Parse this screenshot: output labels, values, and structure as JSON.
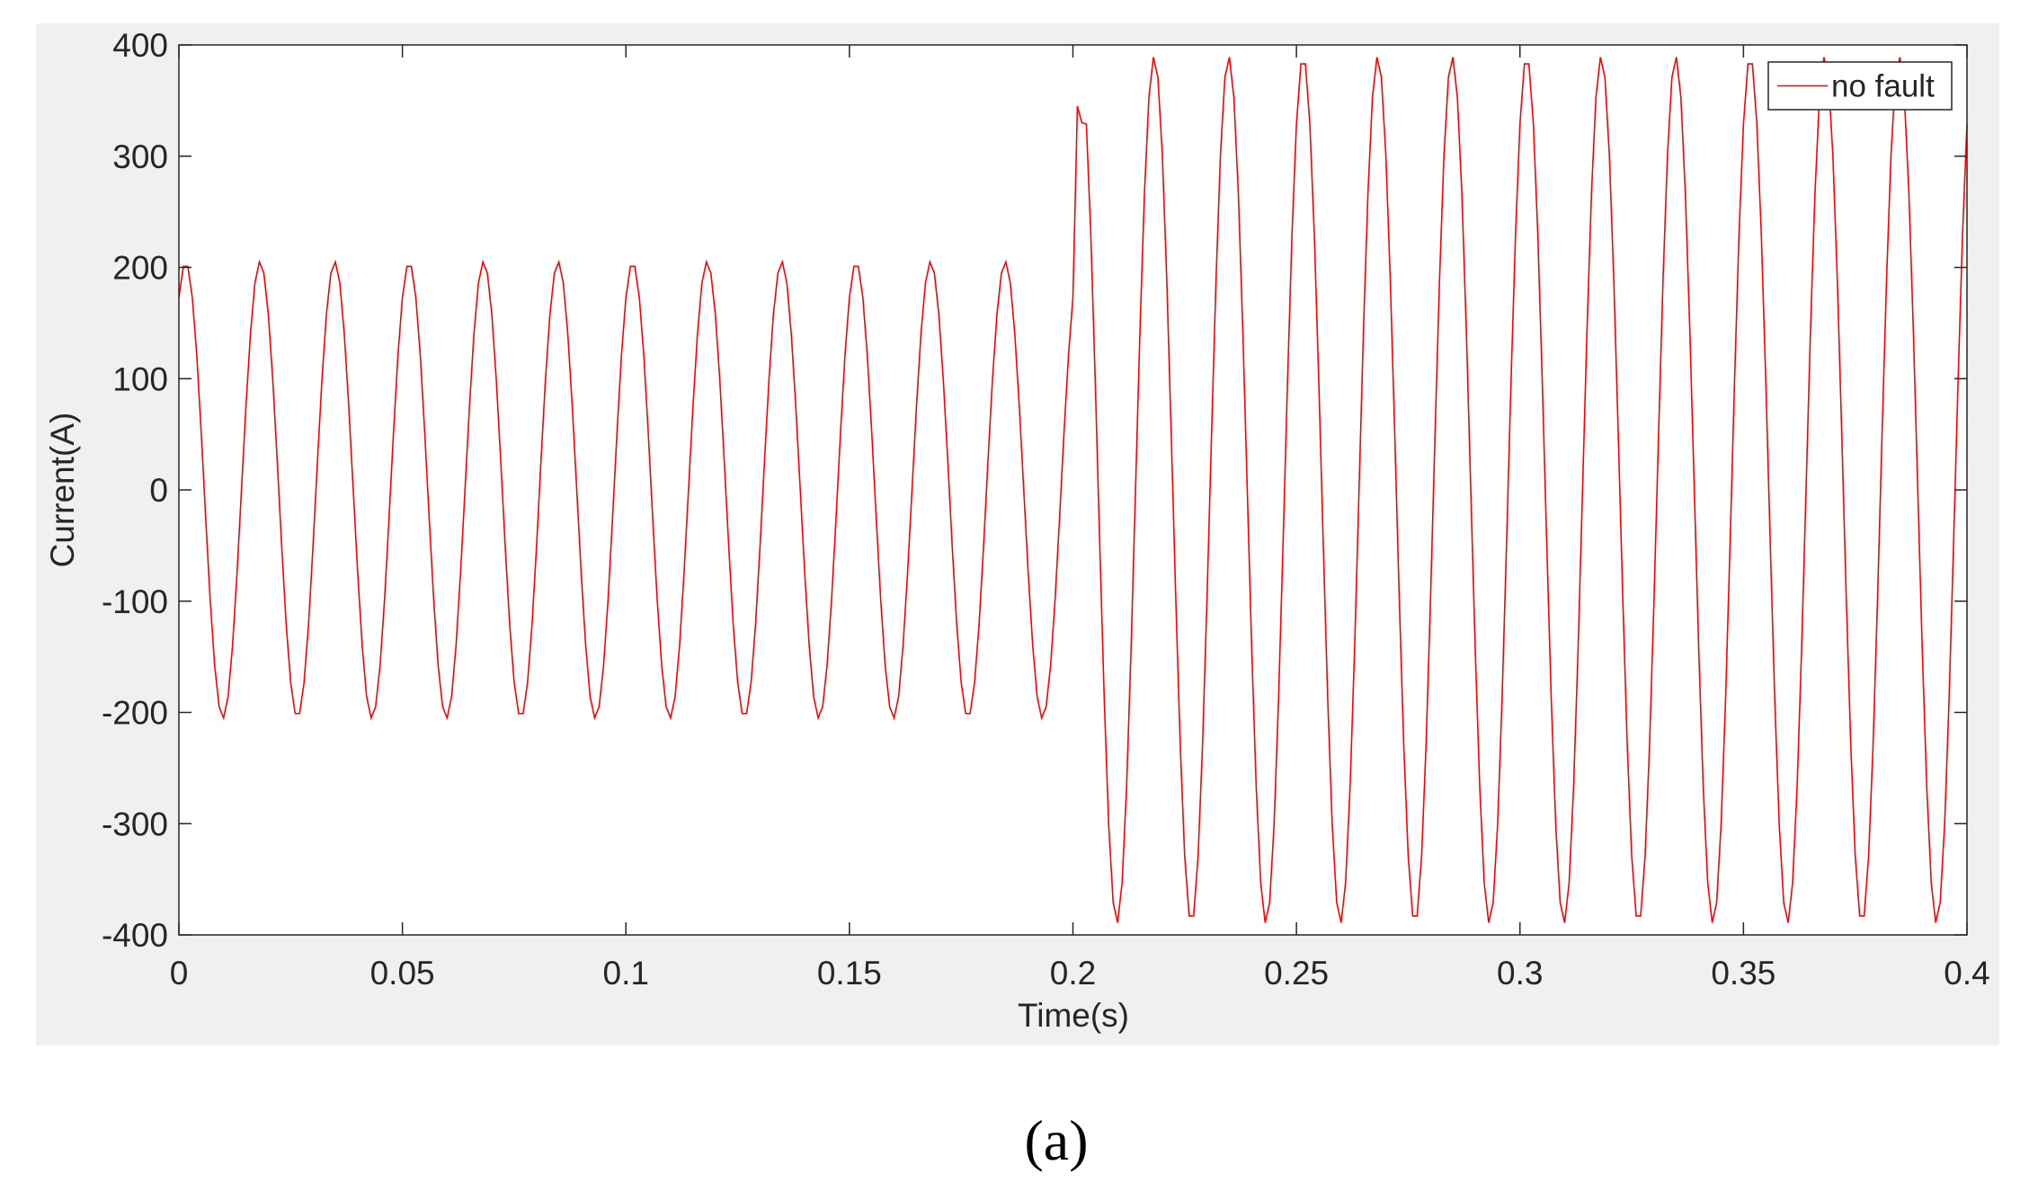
{
  "chart_data": {
    "type": "line",
    "xlabel": "Time(s)",
    "ylabel": "Current(A)",
    "caption": "(a)",
    "xlim": [
      0,
      0.4
    ],
    "ylim": [
      -400,
      400
    ],
    "xticks": [
      0,
      0.05,
      0.1,
      0.15,
      0.2,
      0.25,
      0.3,
      0.35,
      0.4
    ],
    "yticks": [
      -400,
      -300,
      -200,
      -100,
      0,
      100,
      200,
      300,
      400
    ],
    "legend": "upper right",
    "x": [
      0,
      0.001,
      0.002,
      0.003,
      0.004,
      0.005,
      0.006,
      0.007,
      0.008,
      0.009,
      0.01,
      0.011,
      0.012,
      0.013,
      0.014,
      0.015,
      0.016,
      0.017,
      0.018,
      0.019,
      0.02,
      0.021,
      0.022,
      0.023,
      0.024,
      0.025,
      0.026,
      0.027,
      0.028,
      0.029,
      0.03,
      0.031,
      0.032,
      0.033,
      0.034,
      0.035,
      0.036,
      0.037,
      0.038,
      0.039,
      0.04,
      0.041,
      0.042,
      0.043,
      0.044,
      0.045,
      0.046,
      0.047,
      0.048,
      0.049,
      0.05,
      0.051,
      0.052,
      0.053,
      0.054,
      0.055,
      0.056,
      0.057,
      0.058,
      0.059,
      0.06,
      0.061,
      0.062,
      0.063,
      0.064,
      0.065,
      0.066,
      0.067,
      0.068,
      0.069,
      0.07,
      0.071,
      0.072,
      0.073,
      0.074,
      0.075,
      0.076,
      0.077,
      0.078,
      0.079,
      0.08,
      0.081,
      0.082,
      0.083,
      0.084,
      0.085,
      0.086,
      0.087,
      0.088,
      0.089,
      0.09,
      0.091,
      0.092,
      0.093,
      0.094,
      0.095,
      0.096,
      0.097,
      0.098,
      0.099,
      0.1,
      0.101,
      0.102,
      0.103,
      0.104,
      0.105,
      0.106,
      0.107,
      0.108,
      0.109,
      0.11,
      0.111,
      0.112,
      0.113,
      0.114,
      0.115,
      0.116,
      0.117,
      0.118,
      0.119,
      0.12,
      0.121,
      0.122,
      0.123,
      0.124,
      0.125,
      0.126,
      0.127,
      0.128,
      0.129,
      0.13,
      0.131,
      0.132,
      0.133,
      0.134,
      0.135,
      0.136,
      0.137,
      0.138,
      0.139,
      0.14,
      0.141,
      0.142,
      0.143,
      0.144,
      0.145,
      0.146,
      0.147,
      0.148,
      0.149,
      0.15,
      0.151,
      0.152,
      0.153,
      0.154,
      0.155,
      0.156,
      0.157,
      0.158,
      0.159,
      0.16,
      0.161,
      0.162,
      0.163,
      0.164,
      0.165,
      0.166,
      0.167,
      0.168,
      0.169,
      0.17,
      0.171,
      0.172,
      0.173,
      0.174,
      0.175,
      0.176,
      0.177,
      0.178,
      0.179,
      0.18,
      0.181,
      0.182,
      0.183,
      0.184,
      0.185,
      0.186,
      0.187,
      0.188,
      0.189,
      0.19,
      0.191,
      0.192,
      0.193,
      0.194,
      0.195,
      0.196,
      0.197,
      0.198,
      0.199,
      0.2,
      0.201,
      0.202,
      0.203,
      0.204,
      0.205,
      0.206,
      0.207,
      0.208,
      0.209,
      0.21,
      0.211,
      0.212,
      0.213,
      0.214,
      0.215,
      0.216,
      0.217,
      0.218,
      0.219,
      0.22,
      0.221,
      0.222,
      0.223,
      0.224,
      0.225,
      0.226,
      0.227,
      0.228,
      0.229,
      0.23,
      0.231,
      0.232,
      0.233,
      0.234,
      0.235,
      0.236,
      0.237,
      0.238,
      0.239,
      0.24,
      0.241,
      0.242,
      0.243,
      0.244,
      0.245,
      0.246,
      0.247,
      0.248,
      0.249,
      0.25,
      0.251,
      0.252,
      0.253,
      0.254,
      0.255,
      0.256,
      0.257,
      0.258,
      0.259,
      0.26,
      0.261,
      0.262,
      0.263,
      0.264,
      0.265,
      0.266,
      0.267,
      0.268,
      0.269,
      0.27,
      0.271,
      0.272,
      0.273,
      0.274,
      0.275,
      0.276,
      0.277,
      0.278,
      0.279,
      0.28,
      0.281,
      0.282,
      0.283,
      0.284,
      0.285,
      0.286,
      0.287,
      0.288,
      0.289,
      0.29,
      0.291,
      0.292,
      0.293,
      0.294,
      0.295,
      0.296,
      0.297,
      0.298,
      0.299,
      0.3,
      0.301,
      0.302,
      0.303,
      0.304,
      0.305,
      0.306,
      0.307,
      0.308,
      0.309,
      0.31,
      0.311,
      0.312,
      0.313,
      0.314,
      0.315,
      0.316,
      0.317,
      0.318,
      0.319,
      0.32,
      0.321,
      0.322,
      0.323,
      0.324,
      0.325,
      0.326,
      0.327,
      0.328,
      0.329,
      0.33,
      0.331,
      0.332,
      0.333,
      0.334,
      0.335,
      0.336,
      0.337,
      0.338,
      0.339,
      0.34,
      0.341,
      0.342,
      0.343,
      0.344,
      0.345,
      0.346,
      0.347,
      0.348,
      0.349,
      0.35,
      0.351,
      0.352,
      0.353,
      0.354,
      0.355,
      0.356,
      0.357,
      0.358,
      0.359,
      0.36,
      0.361,
      0.362,
      0.363,
      0.364,
      0.365,
      0.366,
      0.367,
      0.368,
      0.369,
      0.37,
      0.371,
      0.372,
      0.373,
      0.374,
      0.375,
      0.376,
      0.377,
      0.378,
      0.379,
      0.38,
      0.381,
      0.382,
      0.383,
      0.384,
      0.385,
      0.386,
      0.387,
      0.388,
      0.389,
      0.39,
      0.391,
      0.392,
      0.393,
      0.394,
      0.395,
      0.396,
      0.397,
      0.398,
      0.399,
      0.4
    ],
    "series": [
      {
        "name": "no fault",
        "color": "#ff0000",
        "values": [
          173,
          201,
          201,
          173,
          121,
          51,
          -26,
          -99,
          -158,
          -195,
          -205,
          -186,
          -140,
          -75,
          0,
          75,
          140,
          186,
          205,
          195,
          158,
          99,
          26,
          -51,
          -121,
          -173,
          -201,
          -201,
          -173,
          -121,
          -51,
          26,
          99,
          158,
          195,
          205,
          186,
          140,
          75,
          0,
          -75,
          -140,
          -186,
          -205,
          -195,
          -158,
          -99,
          -26,
          51,
          121,
          173,
          201,
          201,
          173,
          121,
          51,
          -26,
          -99,
          -158,
          -195,
          -205,
          -186,
          -140,
          -75,
          0,
          75,
          140,
          186,
          205,
          195,
          158,
          99,
          26,
          -51,
          -121,
          -173,
          -201,
          -201,
          -173,
          -121,
          -51,
          26,
          99,
          158,
          195,
          205,
          186,
          140,
          75,
          0,
          -75,
          -140,
          -186,
          -205,
          -195,
          -158,
          -99,
          -26,
          51,
          121,
          173,
          201,
          201,
          173,
          121,
          51,
          -26,
          -99,
          -158,
          -195,
          -205,
          -186,
          -140,
          -75,
          0,
          75,
          140,
          186,
          205,
          195,
          158,
          99,
          26,
          -51,
          -121,
          -173,
          -201,
          -201,
          -173,
          -121,
          -51,
          26,
          99,
          158,
          195,
          205,
          186,
          140,
          75,
          0,
          -75,
          -140,
          -186,
          -205,
          -195,
          -158,
          -99,
          -26,
          51,
          121,
          173,
          201,
          201,
          173,
          121,
          51,
          -26,
          -99,
          -158,
          -195,
          -205,
          -186,
          -140,
          -75,
          0,
          75,
          140,
          186,
          205,
          195,
          158,
          99,
          26,
          -51,
          -121,
          -173,
          -201,
          -201,
          -173,
          -121,
          -51,
          26,
          99,
          158,
          195,
          205,
          186,
          140,
          75,
          0,
          -75,
          -140,
          -186,
          -205,
          -195,
          -158,
          -99,
          -26,
          51,
          121,
          173,
          345,
          330,
          329,
          229,
          97,
          -49,
          -188,
          -301,
          -371,
          -389,
          -353,
          -267,
          -144,
          0,
          144,
          267,
          353,
          389,
          371,
          301,
          188,
          49,
          -97,
          -229,
          -329,
          -383,
          -383,
          -329,
          -229,
          -97,
          49,
          188,
          301,
          371,
          389,
          353,
          267,
          144,
          0,
          -144,
          -267,
          -353,
          -389,
          -371,
          -301,
          -188,
          -49,
          97,
          229,
          329,
          383,
          383,
          329,
          229,
          97,
          -49,
          -188,
          -301,
          -371,
          -389,
          -353,
          -267,
          -144,
          0,
          144,
          267,
          353,
          389,
          371,
          301,
          188,
          49,
          -97,
          -229,
          -329,
          -383,
          -383,
          -329,
          -229,
          -97,
          49,
          188,
          301,
          371,
          389,
          353,
          267,
          144,
          0,
          -144,
          -267,
          -353,
          -389,
          -371,
          -301,
          -188,
          -49,
          97,
          229,
          329,
          383,
          383,
          329,
          229,
          97,
          -49,
          -188,
          -301,
          -371,
          -389,
          -353,
          -267,
          -144,
          0,
          144,
          267,
          353,
          389,
          371,
          301,
          188,
          49,
          -97,
          -229,
          -329,
          -383,
          -383,
          -329,
          -229,
          -97,
          49,
          188,
          301,
          371,
          389,
          353,
          267,
          144,
          0,
          -144,
          -267,
          -353,
          -389,
          -371,
          -301,
          -188,
          -49,
          97,
          229,
          329,
          383,
          383,
          329,
          229,
          97,
          -49,
          -188,
          -301,
          -371,
          -389,
          -353,
          -267,
          -144,
          0,
          144,
          267,
          353,
          389,
          371,
          301,
          188,
          49,
          -97,
          -229,
          -329,
          -383,
          -383,
          -329,
          -229,
          -97,
          49,
          188,
          301,
          371,
          389,
          353,
          267,
          144,
          0,
          -144,
          -267,
          -353,
          -389,
          -371,
          -301,
          -188,
          -49,
          97,
          229,
          329
        ]
      }
    ]
  }
}
